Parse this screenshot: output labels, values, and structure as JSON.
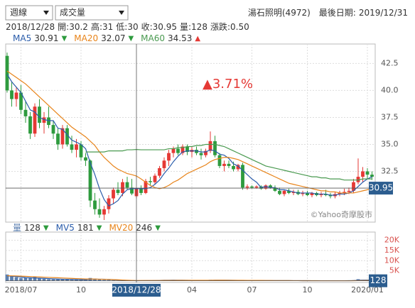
{
  "header": {
    "period_select": "週線",
    "indicator_select": "成交量",
    "stock": "湯石照明(4972)",
    "last_date_label": "最後日期:",
    "last_date": "2019/12/31"
  },
  "info_labels": [
    "開:",
    "高:",
    "低:",
    "收:",
    "量:",
    "漲跌:"
  ],
  "change": {
    "value": 0.5,
    "label": "0.50"
  },
  "annotation": "▲3.71%",
  "watermark": "©Yahoo奇摩股市",
  "chart_data": [
    {
      "type": "candlestick",
      "categories": [
        null,
        null,
        null,
        null,
        null,
        null,
        null,
        null,
        null,
        null,
        null,
        null,
        null,
        null,
        null,
        null,
        null,
        null,
        null,
        null,
        null,
        null,
        null,
        null,
        null,
        null,
        null,
        null,
        "2018/12/28",
        null,
        null,
        null,
        null,
        null,
        null,
        null,
        null,
        null,
        null,
        null,
        null,
        null,
        null,
        null,
        null,
        null,
        null,
        null,
        null,
        null,
        null,
        null,
        null,
        null,
        null,
        null,
        null,
        null,
        null,
        null,
        null,
        null,
        null,
        null,
        null,
        null,
        null,
        null,
        null,
        null,
        null,
        null,
        null,
        null,
        null,
        null,
        null,
        null,
        null,
        null
      ],
      "open": [
        43.2,
        40.0,
        39.2,
        39.8,
        38.2,
        37.6,
        36.0,
        38.5,
        37.0,
        37.5,
        36.8,
        36.0,
        35.0,
        36.5,
        35.0,
        34.5,
        35.0,
        33.8,
        33.5,
        29.8,
        29.0,
        28.5,
        29.0,
        30.0,
        30.8,
        30.5,
        31.5,
        31.0,
        30.2,
        30.95,
        30.5,
        31.6,
        31.5,
        32.1,
        32.8,
        33.5,
        34.2,
        34.6,
        34.2,
        34.8,
        34.3,
        34.5,
        34.2,
        34.0,
        34.4,
        35.3,
        34.0,
        33.0,
        33.2,
        33.0,
        32.7,
        33.1,
        31.0,
        31.1,
        31.0,
        31.1,
        30.9,
        31.2,
        31.0,
        30.7,
        30.4,
        30.7,
        30.5,
        30.6,
        30.4,
        30.5,
        30.3,
        30.5,
        30.3,
        30.4,
        30.3,
        30.2,
        30.4,
        30.5,
        30.6,
        30.7,
        31.5,
        32.0,
        32.5,
        32.2
      ],
      "high": [
        43.5,
        40.8,
        40.3,
        40.5,
        39,
        38,
        38.8,
        39.2,
        38,
        38.5,
        37.2,
        36.5,
        36.8,
        36.8,
        35.8,
        35.5,
        35.3,
        34.2,
        33.6,
        30.5,
        30,
        29.3,
        30.3,
        31,
        31.5,
        31.8,
        32,
        31.8,
        31,
        31.2,
        31.8,
        32,
        32.3,
        33,
        33.8,
        34.5,
        34.8,
        35,
        35,
        35,
        34.8,
        34.8,
        34.6,
        34.6,
        36.2,
        35.8,
        34.2,
        33.5,
        33.5,
        33.4,
        33.2,
        33.3,
        31.3,
        31.2,
        31.2,
        31.2,
        31.3,
        31.3,
        31.2,
        31,
        30.8,
        30.9,
        30.8,
        30.8,
        30.7,
        30.7,
        30.6,
        30.6,
        30.6,
        30.8,
        30.5,
        30.6,
        30.7,
        30.9,
        31,
        31.8,
        33.7,
        32.9,
        32.8,
        32.5
      ],
      "low": [
        39.8,
        38.5,
        38.5,
        37.8,
        37,
        35.5,
        35.7,
        36.5,
        36,
        36.5,
        35.5,
        34.5,
        34.6,
        34.8,
        34.2,
        33.8,
        33.5,
        33,
        29.2,
        28.5,
        28.2,
        28,
        28.6,
        29.5,
        30.3,
        30.2,
        30.8,
        30.3,
        30,
        30.3,
        30.4,
        31.2,
        31.3,
        31.9,
        32.5,
        33,
        33.8,
        34,
        34,
        34,
        33.8,
        34,
        33.6,
        33.8,
        34.2,
        33.8,
        32.8,
        32.5,
        32.8,
        32.5,
        32.5,
        30.8,
        30.8,
        30.9,
        30.9,
        30.8,
        30.8,
        30.9,
        30.6,
        30.3,
        30.2,
        30.4,
        30.3,
        30.3,
        30.2,
        30.2,
        30.1,
        30.2,
        30.1,
        30.2,
        30,
        30,
        30.2,
        30.3,
        30.4,
        30.5,
        31.3,
        31.5,
        31.8,
        31.7
      ],
      "close": [
        40.0,
        39.2,
        39.8,
        38.2,
        37.6,
        36.0,
        38.5,
        37.0,
        37.5,
        36.8,
        36.0,
        35.0,
        36.5,
        35.0,
        34.5,
        35.0,
        33.8,
        33.5,
        29.8,
        29.0,
        28.5,
        29.0,
        30.0,
        30.8,
        30.5,
        31.5,
        31.0,
        30.45,
        30.95,
        30.5,
        31.6,
        31.5,
        32.1,
        32.8,
        33.5,
        34.2,
        34.6,
        34.2,
        34.8,
        34.3,
        34.5,
        34.2,
        34.0,
        34.4,
        35.3,
        34.0,
        33.0,
        33.2,
        33.0,
        32.7,
        33.1,
        31.0,
        31.1,
        31.0,
        31.1,
        30.9,
        31.2,
        31.0,
        30.7,
        30.4,
        30.7,
        30.5,
        30.6,
        30.4,
        30.5,
        30.3,
        30.5,
        30.3,
        30.4,
        30.3,
        30.2,
        30.4,
        30.5,
        30.6,
        30.7,
        31.5,
        32.0,
        32.5,
        32.2,
        32.0
      ],
      "up_color": "#e53935",
      "down_color": "#2e9b3e",
      "series": [
        {
          "name": "MA5",
          "color": "#2a5caa",
          "trend": "▼",
          "trend_color": "#2e9b3e",
          "values": [
            41.5,
            40.8,
            40.3,
            39.8,
            39.0,
            38.2,
            38.0,
            37.5,
            37.3,
            37.2,
            37.2,
            36.5,
            36.4,
            35.9,
            35.4,
            35.2,
            35.0,
            34.6,
            33.3,
            32.2,
            30.9,
            29.9,
            29.3,
            29.5,
            29.8,
            30.4,
            30.8,
            30.9,
            30.91,
            30.9,
            30.9,
            31.0,
            31.3,
            31.7,
            32.3,
            32.8,
            33.4,
            33.9,
            34.3,
            34.4,
            34.4,
            34.4,
            34.3,
            34.3,
            34.5,
            34.4,
            34.1,
            34.0,
            33.7,
            33.2,
            33.0,
            32.6,
            32.2,
            31.8,
            31.5,
            31.0,
            31.1,
            31.0,
            31.0,
            30.8,
            30.8,
            30.7,
            30.6,
            30.5,
            30.5,
            30.5,
            30.5,
            30.4,
            30.4,
            30.4,
            30.3,
            30.3,
            30.4,
            30.4,
            30.5,
            30.7,
            31.1,
            31.5,
            31.8,
            32.0
          ]
        },
        {
          "name": "MA20",
          "color": "#e8841a",
          "trend": "▼",
          "trend_color": "#2e9b3e",
          "values": [
            41.8,
            41.5,
            41.2,
            40.9,
            40.6,
            40.2,
            39.8,
            39.4,
            39.0,
            38.6,
            38.2,
            37.8,
            37.4,
            37.0,
            36.6,
            36.3,
            36.0,
            35.7,
            35.3,
            34.9,
            34.3,
            33.8,
            33.4,
            33.0,
            32.7,
            32.5,
            32.3,
            32.2,
            32.07,
            31.8,
            31.5,
            31.2,
            31.0,
            30.9,
            31.0,
            31.2,
            31.5,
            31.7,
            32.0,
            32.3,
            32.5,
            32.7,
            32.9,
            33.1,
            33.4,
            33.6,
            33.7,
            33.8,
            33.8,
            33.7,
            33.6,
            33.4,
            33.2,
            33.0,
            32.8,
            32.6,
            32.4,
            32.2,
            32.0,
            31.8,
            31.6,
            31.4,
            31.3,
            31.2,
            31.1,
            31.0,
            30.9,
            30.8,
            30.7,
            30.7,
            30.6,
            30.6,
            30.5,
            30.5,
            30.5,
            30.5,
            30.6,
            30.7,
            30.8,
            30.9
          ]
        },
        {
          "name": "MA60",
          "color": "#4a9a50",
          "trend": "▲",
          "trend_color": "#e53935",
          "values": [
            null,
            null,
            null,
            null,
            null,
            null,
            null,
            null,
            null,
            null,
            null,
            null,
            null,
            null,
            null,
            null,
            null,
            34.3,
            34.3,
            34.3,
            34.3,
            34.3,
            34.4,
            34.4,
            34.4,
            34.4,
            34.5,
            34.5,
            34.53,
            34.5,
            34.5,
            34.5,
            34.5,
            34.5,
            34.5,
            34.6,
            34.6,
            34.7,
            34.7,
            34.8,
            34.8,
            34.9,
            34.9,
            35.0,
            35.0,
            35.0,
            34.9,
            34.8,
            34.6,
            34.4,
            34.2,
            34.0,
            33.8,
            33.6,
            33.4,
            33.2,
            33.0,
            32.9,
            32.8,
            32.7,
            32.6,
            32.5,
            32.4,
            32.3,
            32.2,
            32.1,
            32.0,
            32.0,
            31.9,
            31.9,
            31.8,
            31.8,
            31.8,
            31.7,
            31.7,
            31.7,
            31.7,
            31.8,
            31.8,
            31.8
          ]
        }
      ],
      "ylim": [
        27.8,
        44.3
      ],
      "yticks": [
        32.5,
        {
          "value": 35,
          "label": "35.0"
        },
        37.5,
        {
          "value": 40,
          "label": "40.0"
        },
        42.5
      ],
      "xticks": [
        {
          "value": 3,
          "label": "2018/07"
        },
        {
          "value": 16,
          "label": "10"
        },
        {
          "value": 40,
          "label": "04"
        },
        {
          "value": 53,
          "label": "07"
        },
        {
          "value": 65,
          "label": "10"
        },
        {
          "value": 78,
          "label": "2020/01"
        }
      ],
      "grid": true
    },
    {
      "type": "bar",
      "name": "量",
      "color": "#5b7fb0",
      "trend": "▼",
      "trend_color": "#2e9b3e",
      "values": [
        3200,
        2600,
        1900,
        1500,
        1700,
        1400,
        2000,
        1300,
        1100,
        900,
        800,
        900,
        1000,
        700,
        600,
        800,
        600,
        500,
        1500,
        1200,
        700,
        600,
        500,
        400,
        200,
        180,
        150,
        250,
        128,
        200,
        300,
        260,
        350,
        400,
        450,
        500,
        420,
        380,
        350,
        300,
        280,
        300,
        260,
        250,
        600,
        500,
        400,
        300,
        280,
        260,
        250,
        500,
        300,
        250,
        220,
        200,
        220,
        180,
        200,
        250,
        200,
        180,
        160,
        170,
        150,
        160,
        150,
        140,
        150,
        130,
        140,
        150,
        160,
        170,
        180,
        400,
        900,
        600,
        400,
        350
      ],
      "series": [
        {
          "name": "MV5",
          "color": "#2a5caa",
          "trend": "▼",
          "trend_color": "#2e9b3e",
          "values": [
            2500,
            2400,
            2200,
            2000,
            1700,
            1600,
            1500,
            1400,
            1300,
            1200,
            1050,
            950,
            900,
            850,
            800,
            750,
            700,
            650,
            800,
            900,
            900,
            900,
            800,
            650,
            480,
            380,
            290,
            250,
            181,
            190,
            210,
            240,
            280,
            330,
            380,
            420,
            440,
            420,
            390,
            350,
            320,
            300,
            290,
            280,
            330,
            380,
            400,
            420,
            410,
            360,
            300,
            320,
            320,
            300,
            290,
            260,
            240,
            220,
            210,
            210,
            210,
            210,
            200,
            190,
            180,
            170,
            160,
            160,
            150,
            150,
            145,
            145,
            150,
            155,
            165,
            210,
            370,
            450,
            500,
            550
          ]
        },
        {
          "name": "MV20",
          "color": "#e8841a",
          "trend": "▼",
          "trend_color": "#2e9b3e",
          "values": [
            2600,
            2550,
            2500,
            2400,
            2300,
            2200,
            2100,
            2000,
            1900,
            1800,
            1700,
            1600,
            1500,
            1400,
            1300,
            1200,
            1100,
            1000,
            1000,
            950,
            900,
            850,
            800,
            700,
            600,
            500,
            400,
            300,
            246,
            250,
            260,
            270,
            280,
            290,
            300,
            320,
            330,
            340,
            350,
            360,
            360,
            360,
            360,
            360,
            370,
            380,
            380,
            380,
            370,
            360,
            350,
            340,
            330,
            320,
            310,
            300,
            280,
            260,
            240,
            230,
            220,
            210,
            200,
            190,
            180,
            175,
            170,
            165,
            160,
            155,
            150,
            150,
            150,
            150,
            155,
            170,
            200,
            230,
            250,
            270
          ]
        }
      ],
      "ylim": [
        0,
        24000
      ],
      "yticks": [
        {
          "value": 5000,
          "label": "5K"
        },
        {
          "value": 10000,
          "label": "10K"
        },
        {
          "value": 15000,
          "label": "15K"
        },
        {
          "value": 20000,
          "label": "20K"
        }
      ],
      "grid": true
    }
  ]
}
